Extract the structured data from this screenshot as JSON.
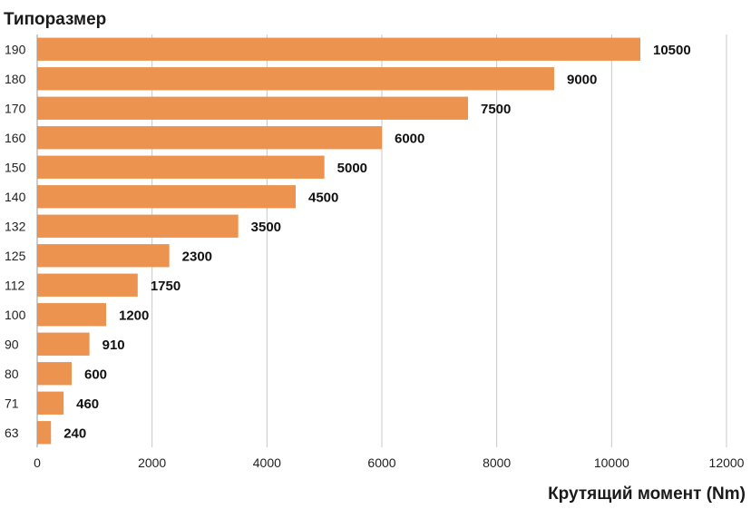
{
  "chart_data": {
    "type": "bar",
    "orientation": "horizontal",
    "ylabel": "Типоразмер",
    "xlabel": "Крутящий момент (Nm)",
    "categories": [
      "190",
      "180",
      "170",
      "160",
      "150",
      "140",
      "132",
      "125",
      "112",
      "100",
      "90",
      "80",
      "71",
      "63"
    ],
    "values": [
      10500,
      9000,
      7500,
      6000,
      5000,
      4500,
      3500,
      2300,
      1750,
      1200,
      910,
      600,
      460,
      240
    ],
    "xlim": [
      0,
      12000
    ],
    "xticks": [
      "0",
      "2000",
      "4000",
      "6000",
      "8000",
      "10000",
      "12000"
    ],
    "grid": "vertical",
    "bar_color": "#ec944f",
    "data_labels": true
  }
}
